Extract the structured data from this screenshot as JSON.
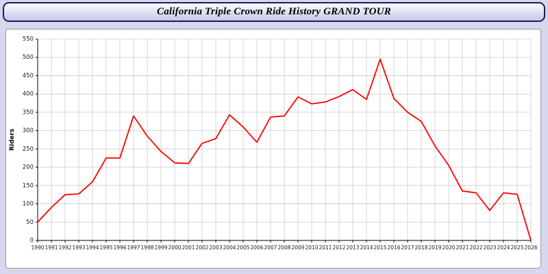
{
  "header": {
    "title": "California Triple Crown Ride History GRAND TOUR"
  },
  "chart_data": {
    "type": "line",
    "title": "California Triple Crown Ride History GRAND TOUR",
    "xlabel": "",
    "ylabel": "Riders",
    "ylim": [
      0,
      550
    ],
    "ytick_step": 50,
    "grid": true,
    "legend": "none",
    "line_color": "#ff0000",
    "x": [
      1990,
      1991,
      1992,
      1993,
      1994,
      1995,
      1996,
      1997,
      1998,
      1999,
      2000,
      2001,
      2002,
      2003,
      2004,
      2005,
      2006,
      2007,
      2008,
      2009,
      2010,
      2011,
      2012,
      2013,
      2014,
      2015,
      2016,
      2017,
      2018,
      2019,
      2020,
      2021,
      2022,
      2023,
      2024,
      2025,
      2026
    ],
    "values": [
      50,
      90,
      125,
      127,
      160,
      225,
      225,
      340,
      285,
      243,
      212,
      210,
      265,
      278,
      343,
      310,
      268,
      337,
      340,
      392,
      373,
      378,
      393,
      412,
      385,
      495,
      388,
      350,
      325,
      258,
      205,
      135,
      130,
      82,
      130,
      126,
      0
    ]
  },
  "colors": {
    "page_background": "#d7d7ee",
    "titlebar_border": "#1b1b5e",
    "grid_line": "#cccccc",
    "axis_line": "#000000",
    "tick_label": "#1a1a1a",
    "series_line": "#ff0000"
  }
}
